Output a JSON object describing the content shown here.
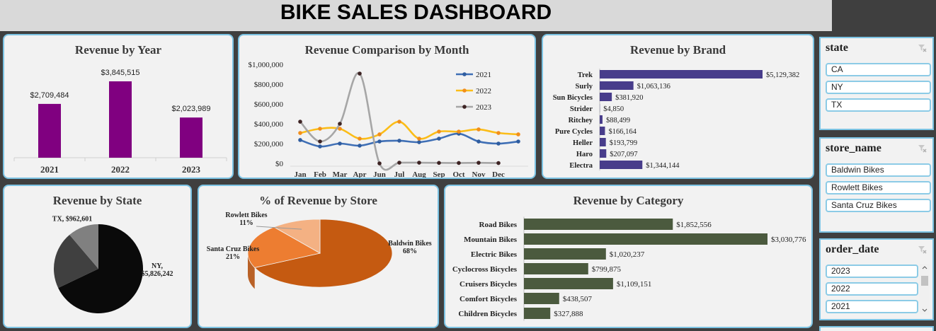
{
  "title": "BIKE SALES DASHBOARD",
  "chart_data": [
    {
      "type": "bar",
      "title": "Revenue by Year",
      "categories": [
        "2021",
        "2022",
        "2023"
      ],
      "values": [
        2709484,
        3845515,
        2023989
      ],
      "value_labels": [
        "$2,709,484",
        "$3,845,515",
        "$2,023,989"
      ],
      "color": "#800080"
    },
    {
      "type": "line",
      "title": "Revenue Comparison by Month",
      "categories": [
        "Jan",
        "Feb",
        "Mar",
        "Apr",
        "Jun",
        "Jul",
        "Aug",
        "Sep",
        "Oct",
        "Nov",
        "Dec",
        null
      ],
      "series": [
        {
          "name": "2021",
          "color": "#3f6fb5",
          "marker_color": "#2f5da0",
          "values": [
            236000,
            171000,
            200000,
            179000,
            221000,
            229000,
            214000,
            250000,
            300000,
            221000,
            200000,
            221000
          ]
        },
        {
          "name": "2022",
          "color": "#fbbd18",
          "marker_color": "#f28e1c",
          "values": [
            307000,
            350000,
            350000,
            250000,
            293000,
            421000,
            250000,
            321000,
            321000,
            343000,
            307000,
            293000
          ]
        },
        {
          "name": "2023",
          "color": "#a6a6a6",
          "marker_color": "#3d2323",
          "values": [
            421000,
            221000,
            400000,
            907000,
            0,
            7000,
            7000,
            5000,
            4000,
            6000,
            3000,
            null
          ]
        }
      ],
      "ylim": [
        0,
        1000000
      ],
      "yticks": [
        {
          "value": 0,
          "label": "$0"
        },
        {
          "value": 200000,
          "label": "$200,000"
        },
        {
          "value": 400000,
          "label": "$400,000"
        },
        {
          "value": 600000,
          "label": "$600,000"
        },
        {
          "value": 800000,
          "label": "$800,000"
        },
        {
          "value": 1000000,
          "label": "$1,000,000"
        }
      ],
      "grid": false,
      "legend": "right"
    },
    {
      "type": "bar",
      "orientation": "horizontal",
      "title": "Revenue by Brand",
      "categories": [
        "Trek",
        "Surly",
        "Sun Bicycles",
        "Strider",
        "Ritchey",
        "Pure Cycles",
        "Heller",
        "Haro",
        "Electra"
      ],
      "values": [
        5129382,
        1063136,
        381920,
        4850,
        88499,
        166164,
        193799,
        207097,
        1344144
      ],
      "value_labels": [
        "$5,129,382",
        "$1,063,136",
        "$381,920",
        "$4,850",
        "$88,499",
        "$166,164",
        "$193,799",
        "$207,097",
        "$1,344,144"
      ],
      "color": "#483d8b"
    },
    {
      "type": "pie",
      "title": "Revenue by State",
      "values": [
        5826242,
        1790145,
        962601
      ],
      "value_labels": [
        "NY, $5,826,242",
        null,
        "TX, $962,601"
      ],
      "colors": [
        "#0a0a0a",
        "#404040",
        "#808080"
      ]
    },
    {
      "type": "pie",
      "title": "% of Revenue by Store",
      "3d": true,
      "categories": [
        "Baldwin Bikes",
        "Santa Cruz Bikes",
        "Rowlett Bikes"
      ],
      "values": [
        68,
        21,
        11
      ],
      "value_labels": [
        "68%",
        "21%",
        "11%"
      ],
      "colors": [
        "#c55a11",
        "#ed7d31",
        "#f4b183"
      ]
    },
    {
      "type": "bar",
      "orientation": "horizontal",
      "title": "Revenue by Category",
      "categories": [
        "Road Bikes",
        "Mountain Bikes",
        "Electric Bikes",
        "Cyclocross Bicycles",
        "Cruisers Bicycles",
        "Comfort Bicycles",
        "Children Bicycles"
      ],
      "values": [
        1852556,
        3030776,
        1020237,
        799875,
        1109151,
        438507,
        327888
      ],
      "value_labels": [
        "$1,852,556",
        "$3,030,776",
        "$1,020,237",
        "$799,875",
        "$1,109,151",
        "$438,507",
        "$327,888"
      ],
      "color": "#4b5a3e"
    }
  ],
  "slicers": [
    {
      "title": "state",
      "items": [
        "CA",
        "NY",
        "TX"
      ]
    },
    {
      "title": "store_name",
      "items": [
        "Baldwin Bikes",
        "Rowlett Bikes",
        "Santa Cruz Bikes"
      ]
    },
    {
      "title": "order_date",
      "items": [
        "2023",
        "2022",
        "2021"
      ]
    }
  ]
}
